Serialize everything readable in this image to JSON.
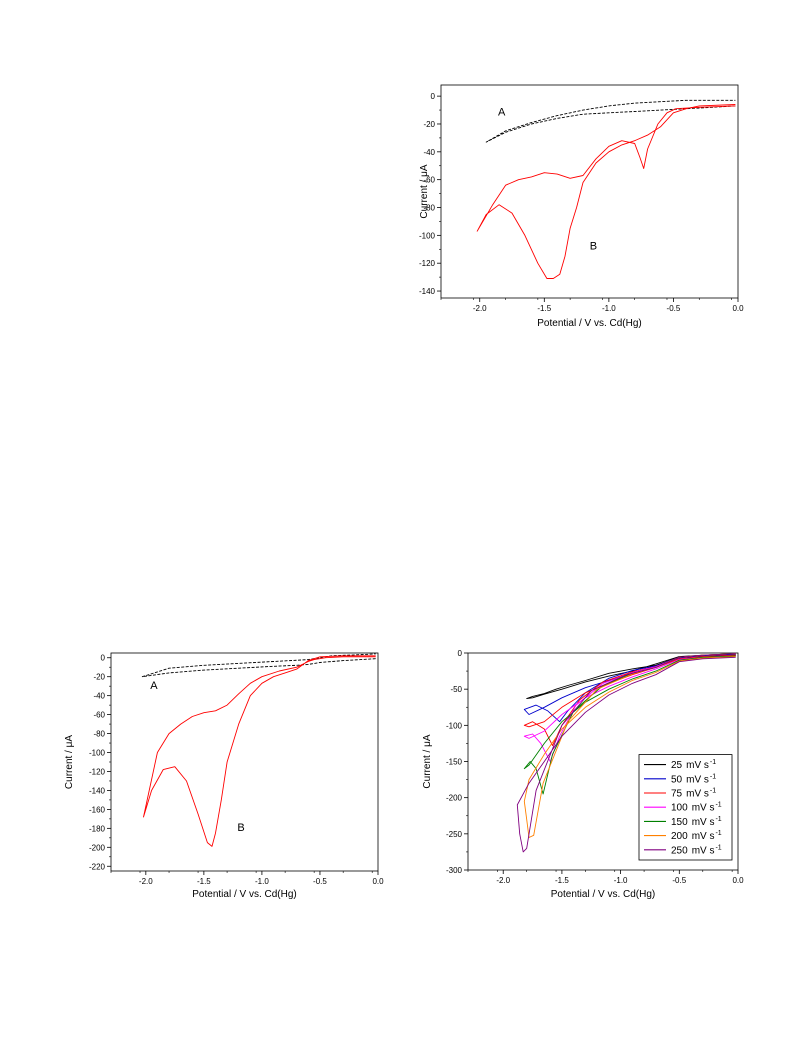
{
  "chart_data": [
    {
      "id": "chart1",
      "type": "line",
      "xlabel": "Potential / V vs. Cd(Hg)",
      "ylabel": "Current / μA",
      "xlim": [
        -2.3,
        0.0
      ],
      "ylim": [
        -145,
        8
      ],
      "xticks": [
        -2.0,
        -1.5,
        -1.0,
        -0.5,
        0.0
      ],
      "xtick_labels": [
        "-2.0",
        "-1.5",
        "-1.0",
        "-0.5",
        "0.0"
      ],
      "yticks": [
        0,
        -20,
        -40,
        -60,
        -80,
        -100,
        -120,
        -140
      ],
      "ytick_labels": [
        "0",
        "-20",
        "-40",
        "-60",
        "-80",
        "-100",
        "-120",
        "-140"
      ],
      "annotations": [
        {
          "text": "A",
          "x": -1.83,
          "y": -14
        },
        {
          "text": "B",
          "x": -1.12,
          "y": -110
        }
      ],
      "series": [
        {
          "color": "#000000",
          "dashed": true,
          "x": [
            -0.02,
            -0.2,
            -0.4,
            -0.6,
            -0.8,
            -1.0,
            -1.2,
            -1.4,
            -1.6,
            -1.8,
            -1.95,
            -1.8,
            -1.6,
            -1.4,
            -1.2,
            -1.0,
            -0.8,
            -0.6,
            -0.4,
            -0.2,
            -0.02
          ],
          "y": [
            -7,
            -8,
            -9,
            -10,
            -11,
            -12,
            -13,
            -16,
            -20,
            -26,
            -33,
            -25,
            -19,
            -14,
            -10,
            -7,
            -5,
            -4,
            -3,
            -3,
            -3
          ]
        },
        {
          "color": "#ff0000",
          "dashed": false,
          "x": [
            -0.02,
            -0.3,
            -0.48,
            -0.55,
            -0.62,
            -0.7,
            -0.73,
            -0.76,
            -0.8,
            -0.9,
            -1.0,
            -1.1,
            -1.2,
            -1.3,
            -1.4,
            -1.5,
            -1.6,
            -1.7,
            -1.8,
            -1.9,
            -2.02,
            -1.95,
            -1.85,
            -1.75,
            -1.65,
            -1.55,
            -1.48,
            -1.43,
            -1.38,
            -1.34,
            -1.3,
            -1.25,
            -1.2,
            -1.1,
            -1.0,
            -0.9,
            -0.8,
            -0.7,
            -0.6,
            -0.5,
            -0.4,
            -0.3,
            -0.02
          ],
          "y": [
            -7,
            -8,
            -9,
            -12,
            -20,
            -38,
            -52,
            -44,
            -34,
            -32,
            -36,
            -45,
            -57,
            -59,
            -56,
            -55,
            -58,
            -60,
            -64,
            -78,
            -97,
            -85,
            -78,
            -84,
            -100,
            -120,
            -131,
            -131,
            -128,
            -115,
            -95,
            -80,
            -62,
            -48,
            -40,
            -35,
            -32,
            -28,
            -22,
            -12,
            -9,
            -7,
            -6
          ]
        }
      ]
    },
    {
      "id": "chart2",
      "type": "line",
      "xlabel": "Potential / V vs. Cd(Hg)",
      "ylabel": "Current / μA",
      "xlim": [
        -2.3,
        0.0
      ],
      "ylim": [
        -225,
        5
      ],
      "xticks": [
        -2.0,
        -1.5,
        -1.0,
        -0.5,
        0.0
      ],
      "xtick_labels": [
        "-2.0",
        "-1.5",
        "-1.0",
        "-0.5",
        "0.0"
      ],
      "yticks": [
        0,
        -20,
        -40,
        -60,
        -80,
        -100,
        -120,
        -140,
        -160,
        -180,
        -200,
        -220
      ],
      "ytick_labels": [
        "0",
        "-20",
        "-40",
        "-60",
        "-80",
        "-100",
        "-120",
        "-140",
        "-160",
        "-180",
        "-200",
        "-220"
      ],
      "annotations": [
        {
          "text": "A",
          "x": -1.93,
          "y": -33
        },
        {
          "text": "B",
          "x": -1.18,
          "y": -183
        }
      ],
      "series": [
        {
          "color": "#000000",
          "dashed": true,
          "x": [
            -0.02,
            -0.3,
            -0.5,
            -0.6,
            -0.7,
            -0.9,
            -1.2,
            -1.5,
            -1.8,
            -2.03,
            -1.8,
            -1.5,
            -1.2,
            -0.9,
            -0.6,
            -0.4,
            -0.2,
            -0.02
          ],
          "y": [
            -1,
            -3,
            -5,
            -7,
            -8,
            -9,
            -11,
            -13,
            -16,
            -20,
            -11,
            -8,
            -6,
            -4,
            -2,
            2,
            3,
            4
          ]
        },
        {
          "color": "#ff0000",
          "dashed": false,
          "x": [
            -0.02,
            -0.3,
            -0.45,
            -0.55,
            -0.6,
            -0.7,
            -0.85,
            -1.0,
            -1.1,
            -1.2,
            -1.3,
            -1.4,
            -1.5,
            -1.6,
            -1.7,
            -1.8,
            -1.9,
            -2.02,
            -1.95,
            -1.85,
            -1.75,
            -1.65,
            -1.55,
            -1.47,
            -1.43,
            -1.4,
            -1.35,
            -1.3,
            -1.2,
            -1.1,
            -1.0,
            -0.9,
            -0.8,
            -0.7,
            -0.6,
            -0.5,
            -0.3,
            -0.02
          ],
          "y": [
            1,
            1,
            0,
            -2,
            -4,
            -10,
            -14,
            -20,
            -27,
            -38,
            -50,
            -56,
            -58,
            -62,
            -70,
            -80,
            -100,
            -168,
            -140,
            -118,
            -115,
            -130,
            -165,
            -195,
            -199,
            -185,
            -150,
            -110,
            -70,
            -40,
            -27,
            -20,
            -16,
            -12,
            -3,
            1,
            2,
            2
          ]
        }
      ]
    },
    {
      "id": "chart3",
      "type": "line",
      "xlabel": "Potential / V vs. Cd(Hg)",
      "ylabel": "Current / μA",
      "xlim": [
        -2.3,
        0.0
      ],
      "ylim": [
        -300,
        0
      ],
      "xticks": [
        -2.0,
        -1.5,
        -1.0,
        -0.5,
        0.0
      ],
      "xtick_labels": [
        "-2.0",
        "-1.5",
        "-1.0",
        "-0.5",
        "0.0"
      ],
      "yticks": [
        0,
        -50,
        -100,
        -150,
        -200,
        -250,
        -300
      ],
      "ytick_labels": [
        "0",
        "-50",
        "-100",
        "-150",
        "-200",
        "-250",
        "-300"
      ],
      "legend": {
        "placement": "bottom-right",
        "unit_label": "mV s",
        "unit_sup": "-1"
      },
      "series": [
        {
          "name": "25",
          "color": "#000000",
          "x": [
            -0.02,
            -0.3,
            -0.5,
            -0.7,
            -0.9,
            -1.1,
            -1.3,
            -1.5,
            -1.65,
            -1.75,
            -1.8,
            -1.75,
            -1.65,
            -1.55,
            -1.45,
            -1.3,
            -1.1,
            -0.9,
            -0.7,
            -0.5,
            -0.3,
            -0.02
          ],
          "y": [
            -2,
            -3,
            -5,
            -15,
            -25,
            -32,
            -40,
            -50,
            -57,
            -62,
            -63,
            -60,
            -56,
            -50,
            -45,
            -38,
            -28,
            -22,
            -17,
            -6,
            -4,
            -3
          ]
        },
        {
          "name": "50",
          "color": "#0000cc",
          "x": [
            -0.02,
            -0.3,
            -0.5,
            -0.7,
            -0.9,
            -1.1,
            -1.3,
            -1.5,
            -1.65,
            -1.78,
            -1.82,
            -1.72,
            -1.62,
            -1.52,
            -1.45,
            -1.3,
            -1.1,
            -0.9,
            -0.7,
            -0.5,
            -0.3,
            -0.02
          ],
          "y": [
            -3,
            -4,
            -7,
            -18,
            -28,
            -38,
            -48,
            -62,
            -75,
            -85,
            -78,
            -72,
            -80,
            -95,
            -80,
            -55,
            -35,
            -24,
            -18,
            -6,
            -3,
            -2
          ]
        },
        {
          "name": "75",
          "color": "#ff0000",
          "x": [
            -0.02,
            -0.3,
            -0.5,
            -0.7,
            -0.9,
            -1.1,
            -1.3,
            -1.5,
            -1.65,
            -1.78,
            -1.82,
            -1.75,
            -1.65,
            -1.58,
            -1.5,
            -1.35,
            -1.15,
            -0.9,
            -0.7,
            -0.5,
            -0.3,
            -0.02
          ],
          "y": [
            -3,
            -5,
            -8,
            -20,
            -30,
            -42,
            -55,
            -75,
            -95,
            -102,
            -100,
            -95,
            -105,
            -128,
            -100,
            -65,
            -40,
            -26,
            -19,
            -6,
            -3,
            -1
          ]
        },
        {
          "name": "100",
          "color": "#ff00ff",
          "x": [
            -0.02,
            -0.3,
            -0.5,
            -0.7,
            -0.9,
            -1.1,
            -1.3,
            -1.5,
            -1.65,
            -1.78,
            -1.82,
            -1.75,
            -1.68,
            -1.6,
            -1.52,
            -1.38,
            -1.15,
            -0.9,
            -0.7,
            -0.5,
            -0.3,
            -0.02
          ],
          "y": [
            -4,
            -6,
            -9,
            -22,
            -33,
            -46,
            -62,
            -85,
            -108,
            -118,
            -115,
            -112,
            -125,
            -150,
            -115,
            -72,
            -42,
            -27,
            -19,
            -6,
            -3,
            -1
          ]
        },
        {
          "name": "150",
          "color": "#008000",
          "x": [
            -0.02,
            -0.3,
            -0.5,
            -0.7,
            -0.9,
            -1.1,
            -1.3,
            -1.5,
            -1.65,
            -1.78,
            -1.82,
            -1.77,
            -1.72,
            -1.66,
            -1.58,
            -1.4,
            -1.15,
            -0.9,
            -0.7,
            -0.5,
            -0.3,
            -0.02
          ],
          "y": [
            -4,
            -6,
            -10,
            -25,
            -36,
            -50,
            -68,
            -95,
            -125,
            -155,
            -160,
            -150,
            -160,
            -195,
            -140,
            -80,
            -45,
            -28,
            -20,
            -6,
            -3,
            -1
          ]
        },
        {
          "name": "200",
          "color": "#ff8000",
          "x": [
            -0.02,
            -0.3,
            -0.5,
            -0.7,
            -0.9,
            -1.1,
            -1.3,
            -1.5,
            -1.65,
            -1.78,
            -1.82,
            -1.8,
            -1.78,
            -1.74,
            -1.66,
            -1.45,
            -1.2,
            -0.9,
            -0.7,
            -0.5,
            -0.3,
            -0.02
          ],
          "y": [
            -5,
            -7,
            -11,
            -27,
            -38,
            -54,
            -75,
            -105,
            -140,
            -175,
            -205,
            -230,
            -255,
            -252,
            -180,
            -95,
            -50,
            -29,
            -20,
            -6,
            -3,
            -1
          ]
        },
        {
          "name": "250",
          "color": "#800080",
          "x": [
            -0.02,
            -0.3,
            -0.5,
            -0.7,
            -0.9,
            -1.1,
            -1.3,
            -1.5,
            -1.65,
            -1.78,
            -1.88,
            -1.86,
            -1.83,
            -1.8,
            -1.72,
            -1.5,
            -1.25,
            -0.95,
            -0.7,
            -0.5,
            -0.3,
            -0.02
          ],
          "y": [
            -6,
            -8,
            -12,
            -30,
            -42,
            -58,
            -82,
            -115,
            -150,
            -180,
            -210,
            -250,
            -275,
            -270,
            -190,
            -100,
            -52,
            -30,
            -20,
            -6,
            -3,
            -1
          ]
        }
      ]
    }
  ]
}
